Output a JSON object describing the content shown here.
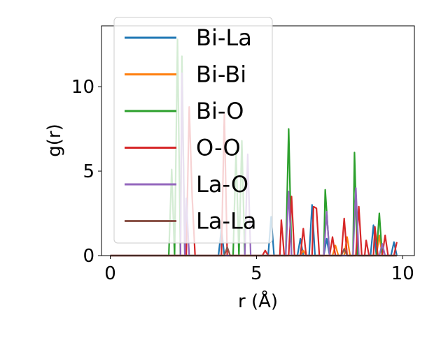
{
  "chart_data": {
    "type": "line",
    "xlabel": "r (Å)",
    "ylabel": "g(r)",
    "xlim": [
      -0.3,
      10.4
    ],
    "ylim": [
      0,
      13.6
    ],
    "xticks": [
      0,
      5,
      10
    ],
    "yticks": [
      0,
      5,
      10
    ],
    "grid": false,
    "legend_position": "top-left",
    "series": [
      {
        "name": "Bi-La",
        "color": "#1f77b4",
        "points": [
          [
            0,
            0
          ],
          [
            3.7,
            0
          ],
          [
            3.8,
            1.6
          ],
          [
            3.9,
            0
          ],
          [
            5.4,
            0
          ],
          [
            5.5,
            2.3
          ],
          [
            5.6,
            0
          ],
          [
            6.4,
            0
          ],
          [
            6.5,
            1.0
          ],
          [
            6.6,
            0
          ],
          [
            6.8,
            0
          ],
          [
            6.9,
            3.0
          ],
          [
            7.0,
            0
          ],
          [
            7.3,
            0
          ],
          [
            7.4,
            1.0
          ],
          [
            7.5,
            0
          ],
          [
            8.9,
            0
          ],
          [
            9.0,
            1.8
          ],
          [
            9.1,
            0
          ],
          [
            9.6,
            0
          ],
          [
            9.7,
            0.8
          ],
          [
            9.8,
            0
          ]
        ]
      },
      {
        "name": "Bi-Bi",
        "color": "#ff7f0e",
        "points": [
          [
            0,
            0
          ],
          [
            6.5,
            0
          ],
          [
            6.6,
            0.3
          ],
          [
            6.7,
            0
          ],
          [
            7.6,
            0
          ],
          [
            7.7,
            0.6
          ],
          [
            7.8,
            0
          ],
          [
            8.0,
            0
          ],
          [
            8.1,
            1.1
          ],
          [
            8.2,
            0
          ],
          [
            9.1,
            0
          ],
          [
            9.2,
            1.2
          ],
          [
            9.3,
            0
          ],
          [
            9.8,
            0
          ]
        ]
      },
      {
        "name": "Bi-O",
        "color": "#2ca02c",
        "points": [
          [
            0,
            0
          ],
          [
            2.0,
            0
          ],
          [
            2.1,
            5.1
          ],
          [
            2.2,
            0
          ],
          [
            2.3,
            12.8
          ],
          [
            2.4,
            0
          ],
          [
            2.45,
            11.8
          ],
          [
            2.55,
            0
          ],
          [
            4.2,
            0
          ],
          [
            4.3,
            6.2
          ],
          [
            4.4,
            0
          ],
          [
            4.5,
            6.8
          ],
          [
            4.6,
            0
          ],
          [
            6.0,
            0
          ],
          [
            6.1,
            7.5
          ],
          [
            6.2,
            0
          ],
          [
            7.3,
            0
          ],
          [
            7.35,
            3.9
          ],
          [
            7.5,
            0
          ],
          [
            8.3,
            0
          ],
          [
            8.35,
            6.1
          ],
          [
            8.45,
            0
          ],
          [
            9.1,
            0
          ],
          [
            9.2,
            2.5
          ],
          [
            9.3,
            0
          ],
          [
            9.8,
            0
          ]
        ]
      },
      {
        "name": "O-O",
        "color": "#d62728",
        "points": [
          [
            0,
            0
          ],
          [
            2.6,
            0
          ],
          [
            2.7,
            8.8
          ],
          [
            2.8,
            3.5
          ],
          [
            2.9,
            0
          ],
          [
            3.8,
            0
          ],
          [
            3.9,
            8.4
          ],
          [
            4.0,
            0
          ],
          [
            5.2,
            0
          ],
          [
            5.3,
            0.3
          ],
          [
            5.4,
            0
          ],
          [
            5.8,
            0
          ],
          [
            5.85,
            2.1
          ],
          [
            5.95,
            0
          ],
          [
            6.1,
            0
          ],
          [
            6.2,
            3.5
          ],
          [
            6.3,
            0
          ],
          [
            6.5,
            0
          ],
          [
            6.6,
            1.6
          ],
          [
            6.7,
            0
          ],
          [
            6.9,
            0
          ],
          [
            6.95,
            2.9
          ],
          [
            7.05,
            2.8
          ],
          [
            7.15,
            0
          ],
          [
            7.5,
            0
          ],
          [
            7.6,
            1.1
          ],
          [
            7.7,
            0
          ],
          [
            7.9,
            0
          ],
          [
            8.0,
            2.2
          ],
          [
            8.1,
            0
          ],
          [
            8.4,
            0
          ],
          [
            8.5,
            2.9
          ],
          [
            8.6,
            0
          ],
          [
            8.7,
            0
          ],
          [
            8.75,
            0.9
          ],
          [
            8.85,
            0
          ],
          [
            9.0,
            0
          ],
          [
            9.05,
            1.7
          ],
          [
            9.15,
            0
          ],
          [
            9.3,
            0
          ],
          [
            9.4,
            1.2
          ],
          [
            9.5,
            0
          ],
          [
            9.7,
            0
          ],
          [
            9.8,
            0.8
          ]
        ]
      },
      {
        "name": "La-O",
        "color": "#9467bd",
        "points": [
          [
            0,
            0
          ],
          [
            2.4,
            0
          ],
          [
            2.45,
            10.8
          ],
          [
            2.55,
            0
          ],
          [
            2.6,
            3.4
          ],
          [
            2.7,
            0
          ],
          [
            4.6,
            0
          ],
          [
            4.7,
            6.0
          ],
          [
            4.8,
            0
          ],
          [
            6.0,
            0
          ],
          [
            6.1,
            3.8
          ],
          [
            6.2,
            0
          ],
          [
            7.3,
            0
          ],
          [
            7.4,
            2.6
          ],
          [
            7.5,
            0
          ],
          [
            8.3,
            0
          ],
          [
            8.4,
            4.0
          ],
          [
            8.5,
            0
          ],
          [
            9.2,
            0
          ],
          [
            9.3,
            0.7
          ],
          [
            9.4,
            0
          ],
          [
            9.8,
            0
          ]
        ]
      },
      {
        "name": "La-La",
        "color": "#8c564b",
        "points": [
          [
            0,
            0
          ],
          [
            3.9,
            0
          ],
          [
            4.0,
            0.5
          ],
          [
            4.1,
            0
          ],
          [
            7.9,
            0
          ],
          [
            8.0,
            0.4
          ],
          [
            8.1,
            0
          ],
          [
            9.8,
            0
          ]
        ]
      }
    ]
  }
}
